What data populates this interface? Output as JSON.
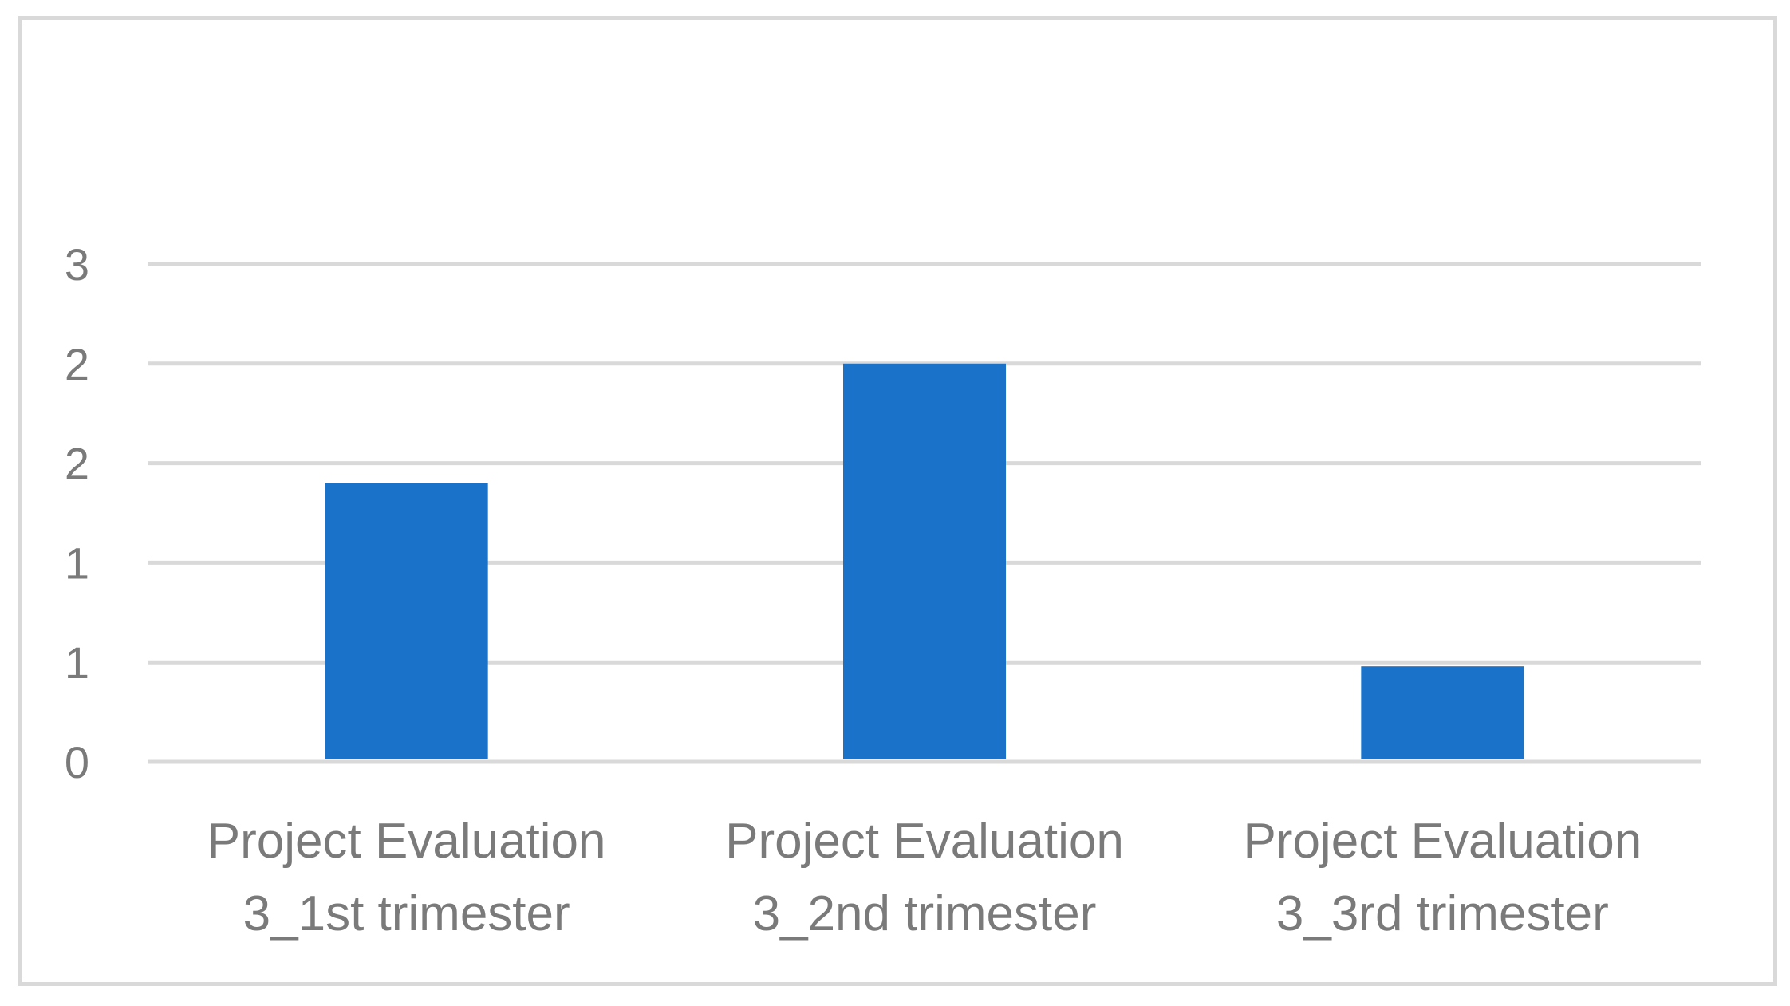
{
  "chart_data": {
    "type": "bar",
    "title": "",
    "xlabel": "",
    "ylabel": "",
    "categories": [
      [
        "Project Evaluation",
        "3_1st trimester"
      ],
      [
        "Project Evaluation",
        "3_2nd trimester"
      ],
      [
        "Project Evaluation",
        "3_3rd trimester"
      ]
    ],
    "values": [
      1.4,
      2.0,
      0.48
    ],
    "ylim": [
      0,
      2.5
    ],
    "yticks": [
      0,
      0.5,
      1.0,
      1.5,
      2.0,
      2.5
    ],
    "ytick_labels": [
      "0",
      "1",
      "1",
      "2",
      "2",
      "3"
    ],
    "grid": true,
    "legend": "none",
    "colors": {
      "bar": "#1a73c8",
      "grid": "#d9d9d9",
      "text": "#7a7a7a",
      "border": "#d9d9d9"
    }
  }
}
